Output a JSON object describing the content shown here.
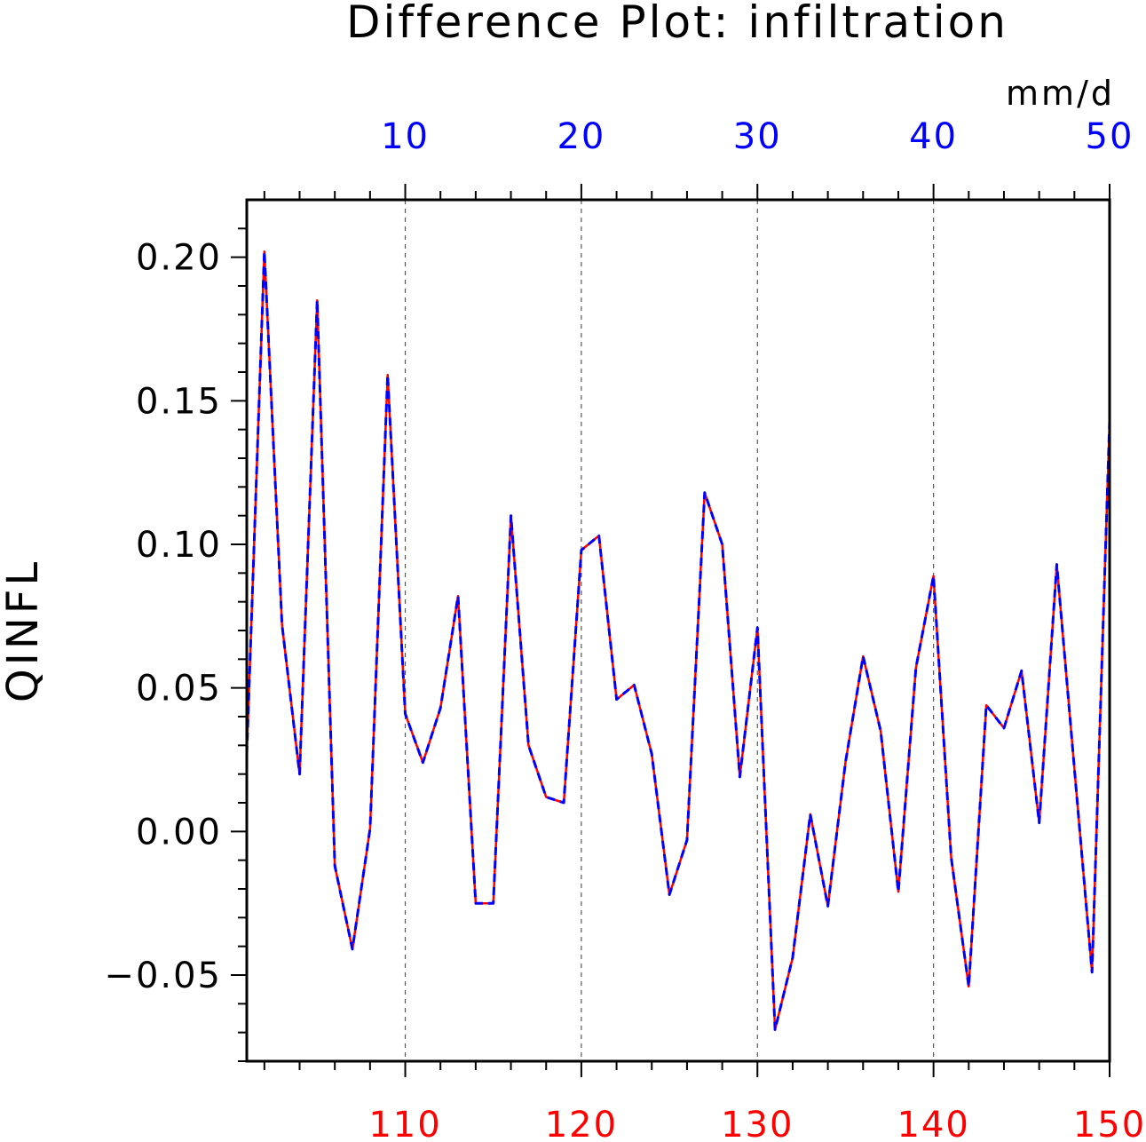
{
  "chart_data": {
    "type": "line",
    "title": "Difference Plot: infiltration",
    "units": "mm/d",
    "ylabel": "QINFL",
    "xlabel": "",
    "ylim": [
      -0.08,
      0.22
    ],
    "y_ticks": [
      -0.05,
      0.0,
      0.05,
      0.1,
      0.15,
      0.2
    ],
    "y_tick_labels": [
      "−0.05",
      "0.00",
      "0.05",
      "0.10",
      "0.15",
      "0.20"
    ],
    "x_bottom": {
      "range": [
        101,
        150
      ],
      "ticks": [
        110,
        120,
        130,
        140,
        150
      ],
      "tick_labels": [
        "110",
        "120",
        "130",
        "140",
        "150"
      ],
      "color": "#ff0000"
    },
    "x_top": {
      "range": [
        1,
        50
      ],
      "ticks": [
        10,
        20,
        30,
        40,
        50
      ],
      "tick_labels": [
        "10",
        "20",
        "30",
        "40",
        "50"
      ],
      "color": "#0000ff"
    },
    "grid": "vertical dashed at major ticks",
    "series": [
      {
        "color": "#ff0000",
        "style": "solid",
        "axis": "bottom",
        "x": [
          101,
          102,
          103,
          104,
          105,
          106,
          107,
          108,
          109,
          110,
          111,
          112,
          113,
          114,
          115,
          116,
          117,
          118,
          119,
          120,
          121,
          122,
          123,
          124,
          125,
          126,
          127,
          128,
          129,
          130,
          131,
          132,
          133,
          134,
          135,
          136,
          137,
          138,
          139,
          140,
          141,
          142,
          143,
          144,
          145,
          146,
          147,
          148,
          149,
          150
        ],
        "values": [
          0.027,
          0.202,
          0.072,
          0.02,
          0.185,
          -0.012,
          -0.041,
          0.001,
          0.159,
          0.041,
          0.024,
          0.043,
          0.082,
          -0.025,
          -0.025,
          0.11,
          0.03,
          0.012,
          0.01,
          0.098,
          0.103,
          0.046,
          0.051,
          0.027,
          -0.022,
          -0.003,
          0.118,
          0.1,
          0.019,
          0.071,
          -0.069,
          -0.044,
          0.006,
          -0.026,
          0.024,
          0.061,
          0.035,
          -0.021,
          0.057,
          0.089,
          -0.009,
          -0.054,
          0.044,
          0.036,
          0.056,
          0.003,
          0.093,
          0.022,
          -0.049,
          0.143
        ]
      },
      {
        "color": "#0000ff",
        "style": "dashed",
        "axis": "top",
        "x": [
          1,
          2,
          3,
          4,
          5,
          6,
          7,
          8,
          9,
          10,
          11,
          12,
          13,
          14,
          15,
          16,
          17,
          18,
          19,
          20,
          21,
          22,
          23,
          24,
          25,
          26,
          27,
          28,
          29,
          30,
          31,
          32,
          33,
          34,
          35,
          36,
          37,
          38,
          39,
          40,
          41,
          42,
          43,
          44,
          45,
          46,
          47,
          48,
          49,
          50
        ],
        "values": [
          0.027,
          0.202,
          0.072,
          0.02,
          0.185,
          -0.012,
          -0.041,
          0.001,
          0.159,
          0.041,
          0.024,
          0.043,
          0.082,
          -0.025,
          -0.025,
          0.11,
          0.03,
          0.012,
          0.01,
          0.098,
          0.103,
          0.046,
          0.051,
          0.027,
          -0.022,
          -0.003,
          0.118,
          0.1,
          0.019,
          0.071,
          -0.069,
          -0.044,
          0.006,
          -0.026,
          0.024,
          0.061,
          0.035,
          -0.021,
          0.057,
          0.089,
          -0.009,
          -0.054,
          0.044,
          0.036,
          0.056,
          0.003,
          0.093,
          0.022,
          -0.049,
          0.143
        ]
      }
    ]
  }
}
